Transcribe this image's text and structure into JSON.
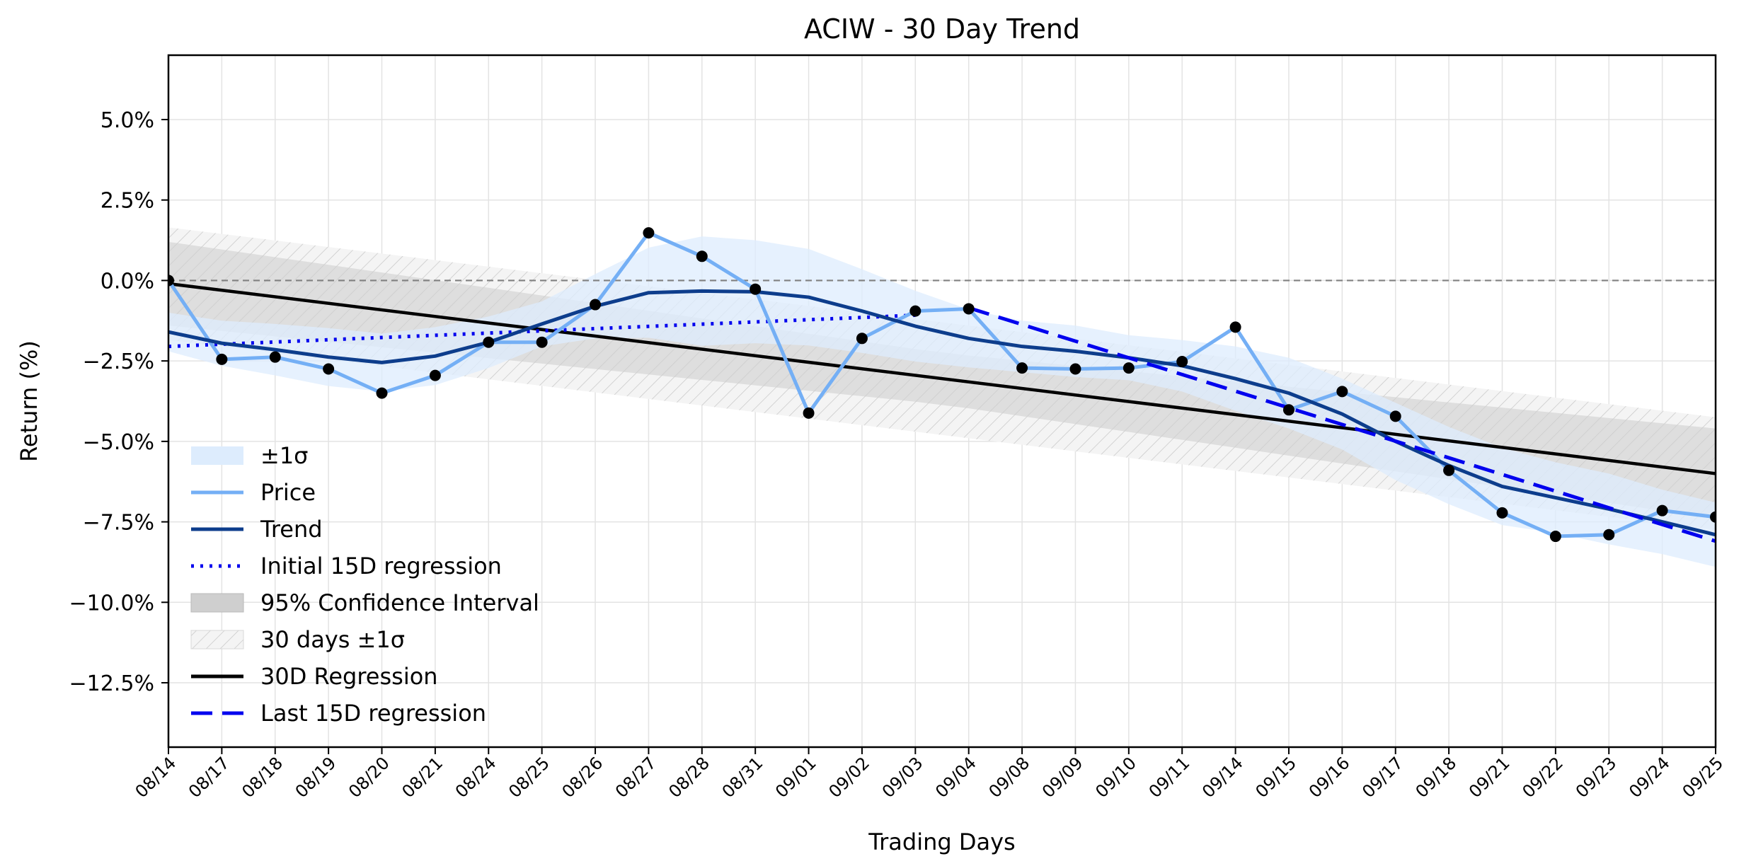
{
  "chart_data": {
    "type": "line",
    "title": "ACIW - 30 Day Trend",
    "xlabel": "Trading Days",
    "ylabel": "Return (%)",
    "ylim": [
      -14.5,
      7.0
    ],
    "yticks": [
      5.0,
      2.5,
      0.0,
      -2.5,
      -5.0,
      -7.5,
      -10.0,
      -12.5
    ],
    "ytick_labels": [
      "5.0%",
      "2.5%",
      "0.0%",
      "−2.5%",
      "−5.0%",
      "−7.5%",
      "−10.0%",
      "−12.5%"
    ],
    "grid": true,
    "legend_position": "lower-left",
    "categories": [
      "08/14",
      "08/17",
      "08/18",
      "08/19",
      "08/20",
      "08/21",
      "08/24",
      "08/25",
      "08/26",
      "08/27",
      "08/28",
      "08/31",
      "09/01",
      "09/02",
      "09/03",
      "09/04",
      "09/08",
      "09/09",
      "09/10",
      "09/11",
      "09/14",
      "09/15",
      "09/16",
      "09/17",
      "09/18",
      "09/21",
      "09/22",
      "09/23",
      "09/24",
      "09/25"
    ],
    "series": [
      {
        "name": "Price",
        "color": "#74aff5",
        "values": [
          0.0,
          -2.45,
          -2.38,
          -2.75,
          -3.5,
          -2.95,
          -1.92,
          -1.92,
          -0.75,
          1.48,
          0.75,
          -0.27,
          -4.12,
          -1.8,
          -0.95,
          -0.88,
          -2.72,
          -2.75,
          -2.72,
          -2.52,
          -1.45,
          -4.02,
          -3.45,
          -4.22,
          -5.9,
          -7.22,
          -7.95,
          -7.9,
          -7.15,
          -7.35
        ]
      },
      {
        "name": "Trend",
        "color": "#0d3d8c",
        "values": [
          -1.6,
          -1.95,
          -2.15,
          -2.38,
          -2.55,
          -2.35,
          -1.92,
          -1.35,
          -0.8,
          -0.38,
          -0.33,
          -0.35,
          -0.52,
          -0.95,
          -1.42,
          -1.8,
          -2.05,
          -2.2,
          -2.4,
          -2.65,
          -3.05,
          -3.5,
          -4.15,
          -5.0,
          -5.75,
          -6.4,
          -6.75,
          -7.1,
          -7.5,
          -7.9
        ]
      },
      {
        "name": "Initial 15D regression",
        "color": "#0000ee",
        "start": 0,
        "end": 14,
        "from": -2.05,
        "to": -1.08
      },
      {
        "name": "Last 15D regression",
        "color": "#0000ee",
        "start": 15,
        "end": 29,
        "from": -0.85,
        "to": -8.1
      },
      {
        "name": "30D Regression",
        "color": "#000000",
        "start": 0,
        "end": 29,
        "from": -0.1,
        "to": -6.0
      }
    ],
    "bands": {
      "sigma_band_name": "±1σ",
      "sigma_band_color": "#ddecfd",
      "sigma_half_width": [
        0.6,
        0.7,
        0.8,
        0.9,
        0.9,
        0.9,
        0.8,
        0.7,
        1.0,
        1.4,
        1.7,
        1.6,
        1.5,
        1.3,
        1.1,
        0.9,
        0.8,
        0.8,
        0.7,
        0.8,
        1.0,
        1.1,
        1.1,
        1.2,
        1.2,
        1.2,
        1.1,
        1.1,
        1.0,
        1.0
      ],
      "ci_name": "95% Confidence Interval",
      "ci_color": "#cfcfcf",
      "ci_half_width_start": 1.3,
      "ci_half_width_mid": 0.8,
      "ci_half_width_end": 1.4,
      "band30_name": "30 days ±1σ",
      "band30_half_width": 1.75
    },
    "markers": {
      "color": "#000000"
    },
    "reference_line": {
      "value": 0.0,
      "color": "#808080"
    }
  },
  "legend": {
    "items": [
      {
        "label": "±1σ",
        "kind": "sigma"
      },
      {
        "label": "Price",
        "kind": "price"
      },
      {
        "label": "Trend",
        "kind": "trend"
      },
      {
        "label": "Initial 15D regression",
        "kind": "initial"
      },
      {
        "label": "95% Confidence Interval",
        "kind": "ci"
      },
      {
        "label": "30 days ±1σ",
        "kind": "band30"
      },
      {
        "label": "30D Regression",
        "kind": "reg30"
      },
      {
        "label": "Last 15D regression",
        "kind": "last"
      }
    ]
  }
}
